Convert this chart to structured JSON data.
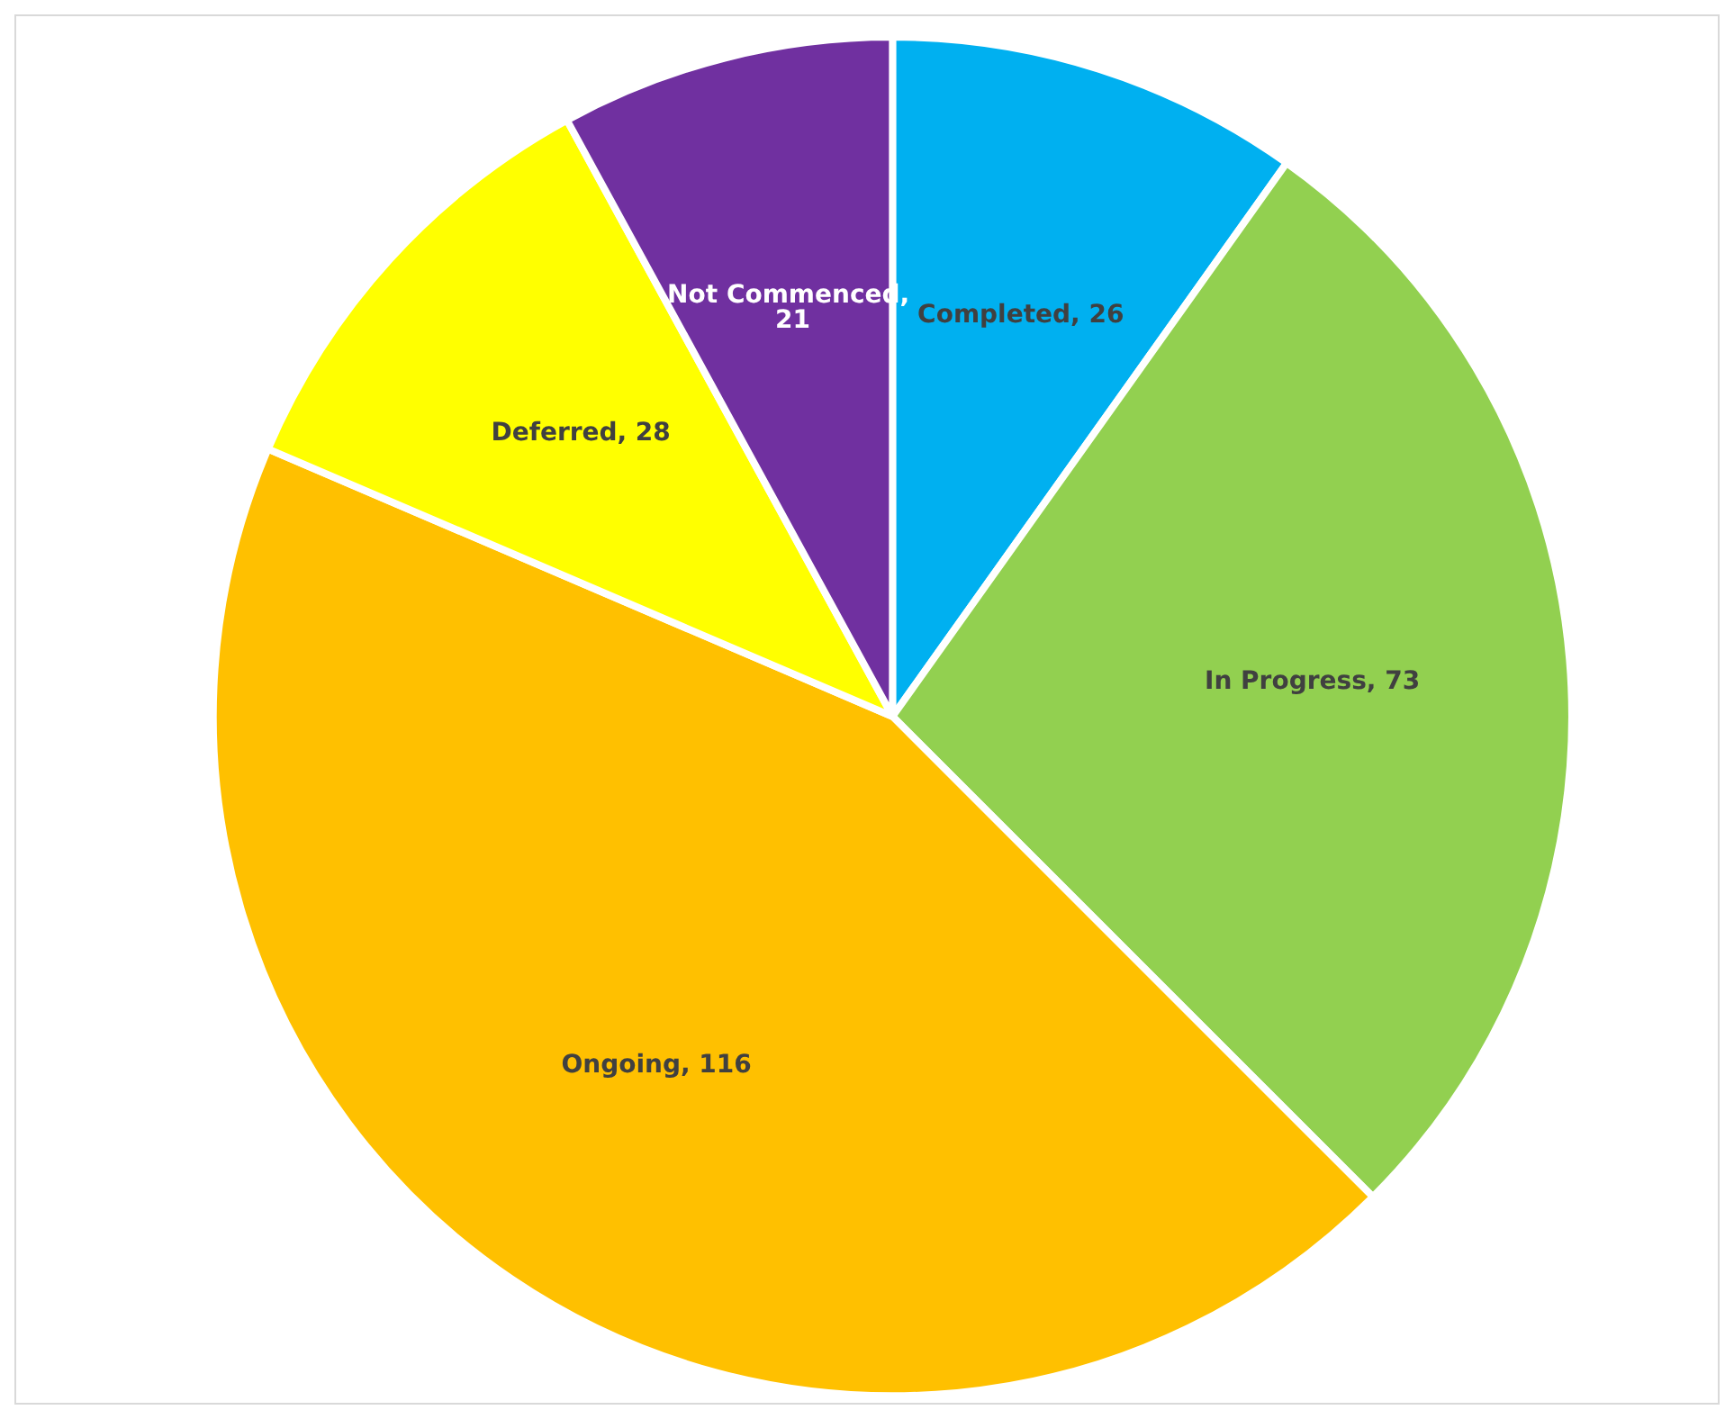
{
  "chart_data": {
    "type": "pie",
    "categories": [
      "Completed",
      "In Progress",
      "Ongoing",
      "Deferred",
      "Not Commenced"
    ],
    "value_labels": [
      ", 26",
      ", 73",
      ", 116",
      ", 28",
      ", 21"
    ],
    "values": [
      26,
      73,
      116,
      28,
      21
    ],
    "colors": [
      "#00b0f0",
      "#92d050",
      "#ffc000",
      "#ffff00",
      "#7030a0"
    ],
    "legend": false
  }
}
